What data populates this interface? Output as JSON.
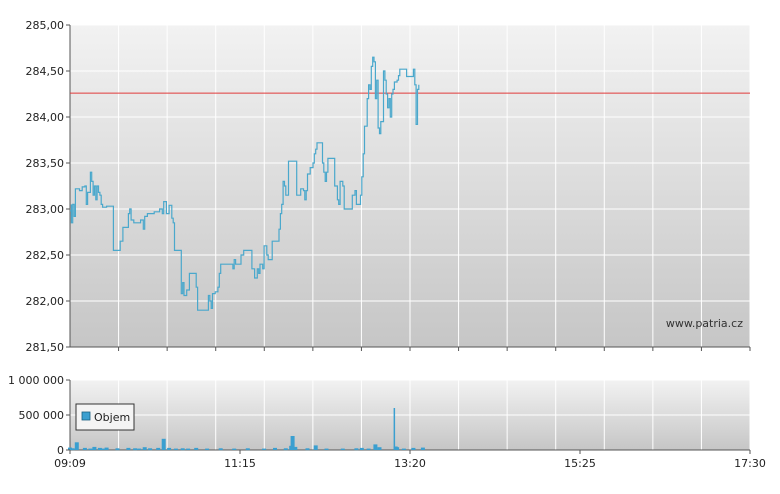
{
  "colors": {
    "price_line": "#4aa8cc",
    "reference_line": "#e03a3a",
    "volume_bar": "#3a9fd0",
    "grid": "#ffffff",
    "panel_top": "#f2f2f2",
    "panel_bottom": "#c6c6c6"
  },
  "chart_data": [
    {
      "type": "line",
      "name": "price",
      "x_start": "09:09",
      "x_end": "17:30",
      "y_ticks": [
        "285,00",
        "284,50",
        "284,00",
        "283,50",
        "283,00",
        "282,50",
        "282,00",
        "281,50"
      ],
      "ylim": [
        281.5,
        285.0
      ],
      "reference_value": 284.26,
      "watermark": "www.patria.cz",
      "grid": true,
      "points": [
        [
          "09:09",
          282.98
        ],
        [
          "09:10",
          283.05
        ],
        [
          "09:10",
          282.85
        ],
        [
          "09:11",
          283.05
        ],
        [
          "09:12",
          282.92
        ],
        [
          "09:13",
          283.22
        ],
        [
          "09:16",
          283.2
        ],
        [
          "09:18",
          283.24
        ],
        [
          "09:20",
          283.25
        ],
        [
          "09:21",
          283.05
        ],
        [
          "09:22",
          283.18
        ],
        [
          "09:24",
          283.4
        ],
        [
          "09:25",
          283.3
        ],
        [
          "09:26",
          283.15
        ],
        [
          "09:27",
          283.25
        ],
        [
          "09:28",
          283.1
        ],
        [
          "09:29",
          283.25
        ],
        [
          "09:30",
          283.18
        ],
        [
          "09:31",
          283.15
        ],
        [
          "09:32",
          283.05
        ],
        [
          "09:33",
          283.02
        ],
        [
          "09:36",
          283.03
        ],
        [
          "09:40",
          283.03
        ],
        [
          "09:41",
          282.55
        ],
        [
          "09:45",
          282.55
        ],
        [
          "09:46",
          282.65
        ],
        [
          "09:48",
          282.8
        ],
        [
          "09:51",
          282.8
        ],
        [
          "09:52",
          282.95
        ],
        [
          "09:53",
          283.0
        ],
        [
          "09:54",
          282.88
        ],
        [
          "09:56",
          282.85
        ],
        [
          "10:00",
          282.85
        ],
        [
          "10:01",
          282.88
        ],
        [
          "10:03",
          282.78
        ],
        [
          "10:04",
          282.92
        ],
        [
          "10:06",
          282.95
        ],
        [
          "10:11",
          282.97
        ],
        [
          "10:15",
          283.0
        ],
        [
          "10:17",
          282.95
        ],
        [
          "10:18",
          283.08
        ],
        [
          "10:20",
          282.95
        ],
        [
          "10:22",
          283.04
        ],
        [
          "10:24",
          282.9
        ],
        [
          "10:25",
          282.85
        ],
        [
          "10:26",
          282.55
        ],
        [
          "10:29",
          282.55
        ],
        [
          "10:31",
          282.08
        ],
        [
          "10:32",
          282.2
        ],
        [
          "10:33",
          282.06
        ],
        [
          "10:35",
          282.12
        ],
        [
          "10:37",
          282.3
        ],
        [
          "10:41",
          282.3
        ],
        [
          "10:42",
          282.15
        ],
        [
          "10:43",
          281.9
        ],
        [
          "10:49",
          281.9
        ],
        [
          "10:51",
          282.06
        ],
        [
          "10:52",
          282.0
        ],
        [
          "10:53",
          281.92
        ],
        [
          "10:54",
          282.08
        ],
        [
          "10:56",
          282.1
        ],
        [
          "10:58",
          282.15
        ],
        [
          "10:59",
          282.3
        ],
        [
          "11:00",
          282.4
        ],
        [
          "11:07",
          282.4
        ],
        [
          "11:08",
          282.4
        ],
        [
          "11:09",
          282.35
        ],
        [
          "11:10",
          282.45
        ],
        [
          "11:11",
          282.4
        ],
        [
          "11:15",
          282.5
        ],
        [
          "11:17",
          282.55
        ],
        [
          "11:22",
          282.55
        ],
        [
          "11:23",
          282.35
        ],
        [
          "11:25",
          282.25
        ],
        [
          "11:26",
          282.25
        ],
        [
          "11:27",
          282.35
        ],
        [
          "11:28",
          282.3
        ],
        [
          "11:29",
          282.4
        ],
        [
          "11:31",
          282.35
        ],
        [
          "11:32",
          282.6
        ],
        [
          "11:34",
          282.5
        ],
        [
          "11:35",
          282.45
        ],
        [
          "11:37",
          282.45
        ],
        [
          "11:38",
          282.65
        ],
        [
          "11:40",
          282.65
        ],
        [
          "11:42",
          282.65
        ],
        [
          "11:43",
          282.78
        ],
        [
          "11:44",
          282.95
        ],
        [
          "11:45",
          283.05
        ],
        [
          "11:46",
          283.3
        ],
        [
          "11:47",
          283.25
        ],
        [
          "11:48",
          283.15
        ],
        [
          "11:49",
          283.15
        ],
        [
          "11:50",
          283.52
        ],
        [
          "11:55",
          283.52
        ],
        [
          "11:56",
          283.15
        ],
        [
          "11:58",
          283.15
        ],
        [
          "11:59",
          283.22
        ],
        [
          "12:01",
          283.2
        ],
        [
          "12:02",
          283.1
        ],
        [
          "12:03",
          283.2
        ],
        [
          "12:04",
          283.38
        ],
        [
          "12:05",
          283.38
        ],
        [
          "12:06",
          283.45
        ],
        [
          "12:08",
          283.5
        ],
        [
          "12:09",
          283.6
        ],
        [
          "12:10",
          283.65
        ],
        [
          "12:11",
          283.72
        ],
        [
          "12:14",
          283.72
        ],
        [
          "12:15",
          283.5
        ],
        [
          "12:16",
          283.4
        ],
        [
          "12:17",
          283.3
        ],
        [
          "12:18",
          283.4
        ],
        [
          "12:19",
          283.55
        ],
        [
          "12:23",
          283.55
        ],
        [
          "12:24",
          283.25
        ],
        [
          "12:26",
          283.1
        ],
        [
          "12:27",
          283.05
        ],
        [
          "12:28",
          283.3
        ],
        [
          "12:30",
          283.25
        ],
        [
          "12:31",
          283.0
        ],
        [
          "12:36",
          283.0
        ],
        [
          "12:37",
          283.15
        ],
        [
          "12:39",
          283.2
        ],
        [
          "12:40",
          283.05
        ],
        [
          "12:41",
          283.05
        ],
        [
          "12:42",
          283.05
        ],
        [
          "12:43",
          283.15
        ],
        [
          "12:44",
          283.35
        ],
        [
          "12:45",
          283.6
        ],
        [
          "12:46",
          283.9
        ],
        [
          "12:47",
          283.9
        ],
        [
          "12:48",
          284.2
        ],
        [
          "12:49",
          284.35
        ],
        [
          "12:50",
          284.3
        ],
        [
          "12:51",
          284.55
        ],
        [
          "12:52",
          284.65
        ],
        [
          "12:53",
          284.6
        ],
        [
          "12:54",
          284.2
        ],
        [
          "12:55",
          284.4
        ],
        [
          "12:56",
          283.88
        ],
        [
          "12:57",
          283.82
        ],
        [
          "12:58",
          283.95
        ],
        [
          "13:00",
          284.5
        ],
        [
          "13:01",
          284.4
        ],
        [
          "13:02",
          284.25
        ],
        [
          "13:03",
          284.1
        ],
        [
          "13:04",
          284.2
        ],
        [
          "13:05",
          284.0
        ],
        [
          "13:06",
          284.25
        ],
        [
          "13:07",
          284.3
        ],
        [
          "13:08",
          284.38
        ],
        [
          "13:10",
          284.4
        ],
        [
          "13:11",
          284.45
        ],
        [
          "13:12",
          284.52
        ],
        [
          "13:17",
          284.44
        ],
        [
          "13:20",
          284.44
        ],
        [
          "13:22",
          284.52
        ],
        [
          "13:23",
          284.35
        ],
        [
          "13:24",
          283.92
        ],
        [
          "13:25",
          284.3
        ],
        [
          "13:26",
          284.35
        ]
      ]
    },
    {
      "type": "bar",
      "name": "volume",
      "legend": "Objem",
      "legend_position": "top-left",
      "x_start": "09:09",
      "x_end": "17:30",
      "x_ticks": [
        "09:09",
        "11:15",
        "13:20",
        "15:25",
        "17:30"
      ],
      "y_ticks": [
        "1 000 000",
        "500 000",
        "0"
      ],
      "ylim": [
        0,
        1000000
      ],
      "bars": [
        [
          "09:09",
          35000
        ],
        [
          "09:11",
          25000
        ],
        [
          "09:14",
          110000
        ],
        [
          "09:20",
          30000
        ],
        [
          "09:24",
          20000
        ],
        [
          "09:27",
          45000
        ],
        [
          "09:31",
          30000
        ],
        [
          "09:33",
          20000
        ],
        [
          "09:36",
          35000
        ],
        [
          "09:44",
          25000
        ],
        [
          "09:52",
          30000
        ],
        [
          "09:57",
          25000
        ],
        [
          "10:00",
          20000
        ],
        [
          "10:04",
          40000
        ],
        [
          "10:08",
          25000
        ],
        [
          "10:14",
          30000
        ],
        [
          "10:18",
          160000
        ],
        [
          "10:22",
          30000
        ],
        [
          "10:27",
          20000
        ],
        [
          "10:32",
          25000
        ],
        [
          "10:36",
          20000
        ],
        [
          "10:42",
          30000
        ],
        [
          "10:50",
          20000
        ],
        [
          "11:00",
          25000
        ],
        [
          "11:10",
          20000
        ],
        [
          "11:20",
          25000
        ],
        [
          "11:32",
          20000
        ],
        [
          "11:40",
          30000
        ],
        [
          "11:48",
          25000
        ],
        [
          "11:52",
          60000
        ],
        [
          "11:53",
          200000
        ],
        [
          "11:55",
          45000
        ],
        [
          "12:04",
          25000
        ],
        [
          "12:10",
          65000
        ],
        [
          "12:18",
          20000
        ],
        [
          "12:30",
          20000
        ],
        [
          "12:40",
          25000
        ],
        [
          "12:44",
          30000
        ],
        [
          "12:49",
          20000
        ],
        [
          "12:54",
          80000
        ],
        [
          "12:57",
          40000
        ],
        [
          "13:08",
          600000
        ],
        [
          "13:09",
          50000
        ],
        [
          "13:10",
          40000
        ],
        [
          "13:15",
          20000
        ],
        [
          "13:22",
          30000
        ],
        [
          "13:29",
          35000
        ]
      ]
    }
  ]
}
